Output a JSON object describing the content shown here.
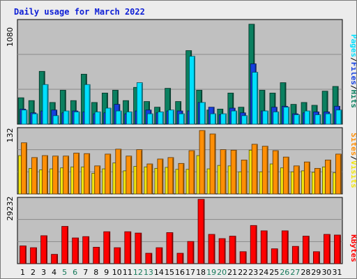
{
  "title": "Daily usage for March 2022",
  "colors": {
    "pages": "#00e0ff",
    "files": "#1540e0",
    "hits": "#0b8060",
    "sites": "#f1e60d",
    "visits": "#ff8f05",
    "kbytes": "#ff0000",
    "weekend_label": "#167a5a",
    "weekday_label": "#000000",
    "title": "#0d1ed6",
    "plot_bg": "#c0c0c0",
    "frame_bg": "#ececec"
  },
  "legend_pfh": [
    "Pages",
    "/",
    "Files",
    "/",
    "Hits"
  ],
  "legend_sv": [
    "Sites",
    "/",
    "Visits"
  ],
  "legend_kb": [
    "KBytes"
  ],
  "chart_data": [
    {
      "type": "bar",
      "title": "Daily usage for March 2022",
      "ylabel_top": "1080",
      "ylim": [
        0,
        1080
      ],
      "grid": true,
      "categories": [
        "1",
        "2",
        "3",
        "4",
        "5",
        "6",
        "7",
        "8",
        "9",
        "10",
        "11",
        "12",
        "13",
        "14",
        "15",
        "16",
        "17",
        "18",
        "19",
        "20",
        "21",
        "22",
        "23",
        "24",
        "25",
        "26",
        "27",
        "28",
        "29",
        "30",
        "31"
      ],
      "weekend_days": [
        "5",
        "6",
        "12",
        "13",
        "19",
        "20",
        "26",
        "27"
      ],
      "series": [
        {
          "name": "Hits",
          "values": [
            280,
            250,
            560,
            230,
            360,
            250,
            530,
            230,
            330,
            360,
            250,
            390,
            240,
            180,
            380,
            240,
            780,
            360,
            150,
            160,
            330,
            180,
            1060,
            360,
            330,
            440,
            210,
            230,
            200,
            350,
            400
          ]
        },
        {
          "name": "Files",
          "values": [
            160,
            120,
            140,
            150,
            120,
            140,
            130,
            110,
            120,
            210,
            110,
            140,
            150,
            120,
            140,
            140,
            140,
            230,
            180,
            100,
            170,
            120,
            640,
            140,
            180,
            190,
            110,
            120,
            130,
            130,
            190
          ]
        },
        {
          "name": "Pages",
          "values": [
            150,
            110,
            420,
            90,
            140,
            130,
            420,
            130,
            170,
            140,
            130,
            440,
            110,
            130,
            150,
            110,
            720,
            230,
            110,
            110,
            140,
            90,
            550,
            140,
            130,
            180,
            100,
            140,
            100,
            110,
            150
          ]
        }
      ]
    },
    {
      "type": "bar",
      "ylabel_top": "132",
      "ylim": [
        0,
        132
      ],
      "grid": true,
      "categories": [
        "1",
        "2",
        "3",
        "4",
        "5",
        "6",
        "7",
        "8",
        "9",
        "10",
        "11",
        "12",
        "13",
        "14",
        "15",
        "16",
        "17",
        "18",
        "19",
        "20",
        "21",
        "22",
        "23",
        "24",
        "25",
        "26",
        "27",
        "28",
        "29",
        "30",
        "31"
      ],
      "series": [
        {
          "name": "Sites",
          "values": [
            78,
            52,
            49,
            51,
            53,
            55,
            55,
            42,
            51,
            63,
            47,
            56,
            55,
            52,
            54,
            50,
            50,
            78,
            51,
            58,
            57,
            45,
            89,
            45,
            61,
            53,
            45,
            47,
            44,
            55,
            43
          ]
        },
        {
          "name": "Visits",
          "values": [
            104,
            74,
            78,
            77,
            77,
            83,
            82,
            57,
            81,
            91,
            77,
            90,
            61,
            71,
            74,
            62,
            88,
            129,
            122,
            90,
            89,
            69,
            101,
            97,
            88,
            75,
            57,
            65,
            52,
            69,
            81
          ]
        }
      ]
    },
    {
      "type": "bar",
      "ylabel_top": "29232",
      "ylim": [
        0,
        29232
      ],
      "grid": true,
      "categories": [
        "1",
        "2",
        "3",
        "4",
        "5",
        "6",
        "7",
        "8",
        "9",
        "10",
        "11",
        "12",
        "13",
        "14",
        "15",
        "16",
        "17",
        "18",
        "19",
        "20",
        "21",
        "22",
        "23",
        "24",
        "25",
        "26",
        "27",
        "28",
        "29",
        "30",
        "31"
      ],
      "series": [
        {
          "name": "KBytes",
          "values": [
            8000,
            7200,
            12600,
            4200,
            16800,
            11600,
            12200,
            7400,
            14400,
            7200,
            14400,
            13800,
            4700,
            7200,
            14000,
            4700,
            10000,
            29000,
            13200,
            11300,
            12400,
            5400,
            17200,
            14800,
            6700,
            14800,
            7800,
            12400,
            5400,
            13200,
            12900
          ]
        }
      ]
    }
  ]
}
